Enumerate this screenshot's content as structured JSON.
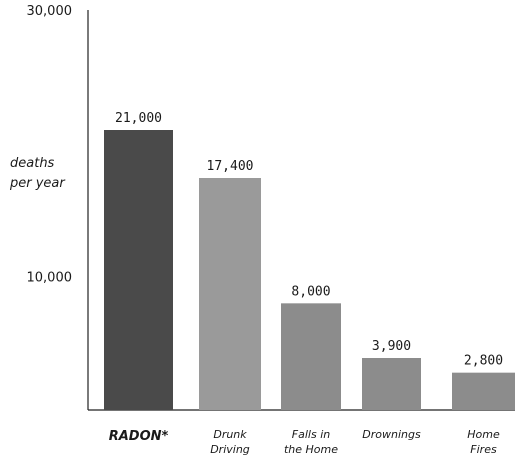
{
  "chart_data": {
    "type": "bar",
    "title": "",
    "ylabel": "deaths per year",
    "ylabel_lines": [
      "deaths",
      "per year"
    ],
    "xlabel": "",
    "ylim": [
      0,
      30000
    ],
    "yticks": [
      10000,
      30000
    ],
    "ytick_labels": [
      "10,000",
      "30,000"
    ],
    "categories": [
      "RADON*",
      "Drunk Driving",
      "Falls in the Home",
      "Drownings",
      "Home Fires"
    ],
    "category_lines": [
      [
        "RADON*"
      ],
      [
        "Drunk",
        "Driving"
      ],
      [
        "Falls in",
        "the Home"
      ],
      [
        "Drownings"
      ],
      [
        "Home",
        "Fires"
      ]
    ],
    "values": [
      21000,
      17400,
      8000,
      3900,
      2800
    ],
    "value_labels": [
      "21,000",
      "17,400",
      "8,000",
      "3,900",
      "2,800"
    ],
    "highlight_index": 0,
    "colors": {
      "highlight": "#4a4a4a",
      "bar_lighter": "#9a9a9a",
      "bar_light": "#8c8c8c",
      "axis": "#222222"
    },
    "bar_colors": [
      "#4a4a4a",
      "#9a9a9a",
      "#8c8c8c",
      "#8c8c8c",
      "#8c8c8c"
    ],
    "grid": false,
    "legend": "none"
  }
}
